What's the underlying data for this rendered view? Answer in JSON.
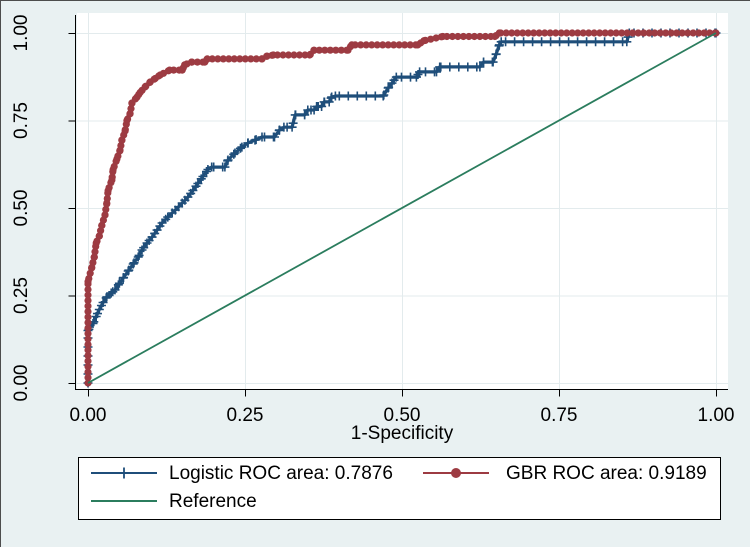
{
  "figure": {
    "background_color": "#e9f1f2",
    "plot_background_color": "#ffffff",
    "grid_color": "#e3ebed",
    "axis_color": "#000000",
    "tick_label_color": "#000000",
    "legend": {
      "background_color": "#ffffff",
      "border_color": "#000000"
    }
  },
  "chart_data": {
    "type": "line",
    "subtype": "roc-curves",
    "title": "",
    "xlabel": "1-Specificity",
    "ylabel": "",
    "xlim": [
      0,
      1
    ],
    "ylim": [
      0,
      1
    ],
    "xtick_values": [
      0,
      0.25,
      0.5,
      0.75,
      1
    ],
    "xtick_labels": [
      "0.00",
      "0.25",
      "0.50",
      "0.75",
      "1.00"
    ],
    "ytick_values": [
      0,
      0.25,
      0.5,
      0.75,
      1
    ],
    "ytick_labels": [
      "0.00",
      "0.25",
      "0.50",
      "0.75",
      "1.00"
    ],
    "grid": true,
    "legend_position": "bottom",
    "series": [
      {
        "name": "Logistic ROC area: 0.7876",
        "auc": 0.7876,
        "color": "#1f4e7a",
        "marker": "plus",
        "points": [
          [
            0.0,
            0.0
          ],
          [
            0.0,
            0.15
          ],
          [
            0.008,
            0.17
          ],
          [
            0.013,
            0.19
          ],
          [
            0.018,
            0.21
          ],
          [
            0.024,
            0.23
          ],
          [
            0.03,
            0.246
          ],
          [
            0.037,
            0.257
          ],
          [
            0.043,
            0.266
          ],
          [
            0.05,
            0.285
          ],
          [
            0.056,
            0.3
          ],
          [
            0.064,
            0.32
          ],
          [
            0.072,
            0.34
          ],
          [
            0.08,
            0.36
          ],
          [
            0.086,
            0.38
          ],
          [
            0.094,
            0.4
          ],
          [
            0.102,
            0.417
          ],
          [
            0.11,
            0.437
          ],
          [
            0.118,
            0.457
          ],
          [
            0.127,
            0.474
          ],
          [
            0.139,
            0.494
          ],
          [
            0.15,
            0.514
          ],
          [
            0.159,
            0.531
          ],
          [
            0.167,
            0.55
          ],
          [
            0.175,
            0.57
          ],
          [
            0.183,
            0.59
          ],
          [
            0.191,
            0.61
          ],
          [
            0.197,
            0.617
          ],
          [
            0.218,
            0.617
          ],
          [
            0.223,
            0.637
          ],
          [
            0.234,
            0.657
          ],
          [
            0.245,
            0.674
          ],
          [
            0.255,
            0.686
          ],
          [
            0.266,
            0.694
          ],
          [
            0.277,
            0.703
          ],
          [
            0.297,
            0.703
          ],
          [
            0.305,
            0.723
          ],
          [
            0.312,
            0.731
          ],
          [
            0.325,
            0.731
          ],
          [
            0.33,
            0.766
          ],
          [
            0.345,
            0.766
          ],
          [
            0.35,
            0.78
          ],
          [
            0.36,
            0.78
          ],
          [
            0.364,
            0.79
          ],
          [
            0.372,
            0.79
          ],
          [
            0.376,
            0.803
          ],
          [
            0.384,
            0.803
          ],
          [
            0.388,
            0.817
          ],
          [
            0.394,
            0.82
          ],
          [
            0.47,
            0.82
          ],
          [
            0.478,
            0.843
          ],
          [
            0.484,
            0.857
          ],
          [
            0.491,
            0.874
          ],
          [
            0.523,
            0.874
          ],
          [
            0.528,
            0.889
          ],
          [
            0.555,
            0.889
          ],
          [
            0.56,
            0.903
          ],
          [
            0.624,
            0.903
          ],
          [
            0.63,
            0.917
          ],
          [
            0.645,
            0.917
          ],
          [
            0.65,
            0.94
          ],
          [
            0.655,
            0.966
          ],
          [
            0.658,
            0.975
          ],
          [
            0.858,
            0.975
          ],
          [
            0.862,
            1.0
          ],
          [
            1.0,
            1.0
          ]
        ]
      },
      {
        "name": "GBR ROC area: 0.9189",
        "auc": 0.9189,
        "color": "#9d3b42",
        "marker": "circle",
        "points": [
          [
            0.0,
            0.0
          ],
          [
            0.0,
            0.29
          ],
          [
            0.006,
            0.33
          ],
          [
            0.01,
            0.36
          ],
          [
            0.013,
            0.4
          ],
          [
            0.018,
            0.42
          ],
          [
            0.022,
            0.45
          ],
          [
            0.027,
            0.48
          ],
          [
            0.03,
            0.514
          ],
          [
            0.032,
            0.55
          ],
          [
            0.038,
            0.58
          ],
          [
            0.04,
            0.61
          ],
          [
            0.046,
            0.64
          ],
          [
            0.051,
            0.665
          ],
          [
            0.054,
            0.694
          ],
          [
            0.059,
            0.72
          ],
          [
            0.062,
            0.75
          ],
          [
            0.067,
            0.77
          ],
          [
            0.07,
            0.8
          ],
          [
            0.078,
            0.817
          ],
          [
            0.083,
            0.83
          ],
          [
            0.091,
            0.846
          ],
          [
            0.099,
            0.86
          ],
          [
            0.107,
            0.87
          ],
          [
            0.115,
            0.88
          ],
          [
            0.13,
            0.894
          ],
          [
            0.15,
            0.894
          ],
          [
            0.154,
            0.909
          ],
          [
            0.165,
            0.917
          ],
          [
            0.186,
            0.917
          ],
          [
            0.19,
            0.926
          ],
          [
            0.277,
            0.926
          ],
          [
            0.285,
            0.934
          ],
          [
            0.295,
            0.937
          ],
          [
            0.353,
            0.937
          ],
          [
            0.36,
            0.951
          ],
          [
            0.414,
            0.951
          ],
          [
            0.42,
            0.966
          ],
          [
            0.525,
            0.966
          ],
          [
            0.535,
            0.978
          ],
          [
            0.565,
            0.99
          ],
          [
            0.648,
            0.99
          ],
          [
            0.655,
            1.0
          ],
          [
            1.0,
            1.0
          ]
        ]
      },
      {
        "name": "Reference",
        "color": "#2b7d5e",
        "marker": "none",
        "points": [
          [
            0,
            0
          ],
          [
            1,
            1
          ]
        ]
      }
    ]
  }
}
